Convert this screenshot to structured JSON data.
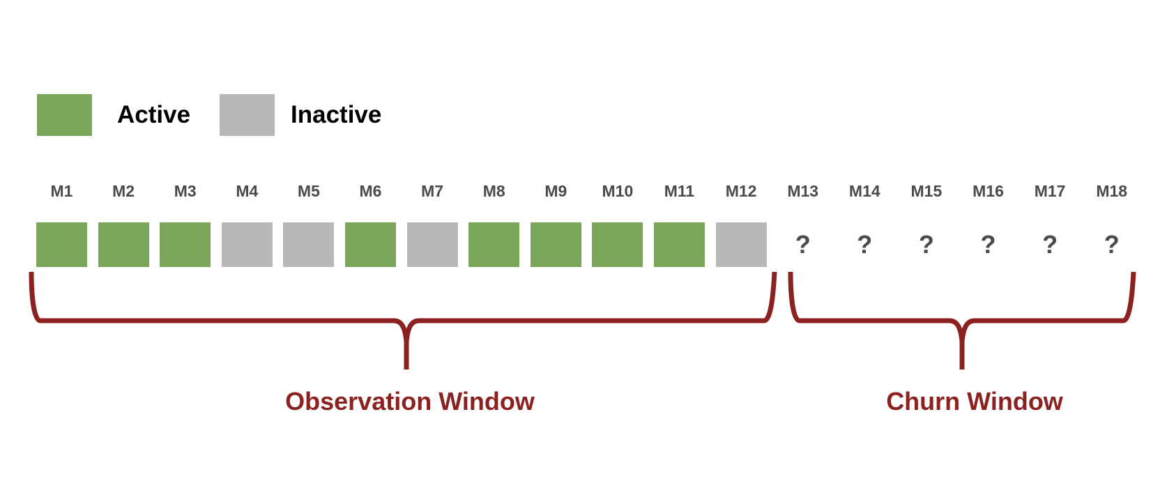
{
  "legend": {
    "active": {
      "label": "Active",
      "color": "#7ba65a"
    },
    "inactive": {
      "label": "Inactive",
      "color": "#b8b8b8"
    }
  },
  "months": [
    {
      "label": "M1",
      "status": "active"
    },
    {
      "label": "M2",
      "status": "active"
    },
    {
      "label": "M3",
      "status": "active"
    },
    {
      "label": "M4",
      "status": "inactive"
    },
    {
      "label": "M5",
      "status": "inactive"
    },
    {
      "label": "M6",
      "status": "active"
    },
    {
      "label": "M7",
      "status": "inactive"
    },
    {
      "label": "M8",
      "status": "active"
    },
    {
      "label": "M9",
      "status": "active"
    },
    {
      "label": "M10",
      "status": "active"
    },
    {
      "label": "M11",
      "status": "active"
    },
    {
      "label": "M12",
      "status": "inactive"
    },
    {
      "label": "M13",
      "status": "unknown",
      "marker": "?"
    },
    {
      "label": "M14",
      "status": "unknown",
      "marker": "?"
    },
    {
      "label": "M15",
      "status": "unknown",
      "marker": "?"
    },
    {
      "label": "M16",
      "status": "unknown",
      "marker": "?"
    },
    {
      "label": "M17",
      "status": "unknown",
      "marker": "?"
    },
    {
      "label": "M18",
      "status": "unknown",
      "marker": "?"
    }
  ],
  "windows": {
    "observation": {
      "label": "Observation Window"
    },
    "churn": {
      "label": "Churn Window"
    }
  },
  "bracket_color": "#8b2220"
}
